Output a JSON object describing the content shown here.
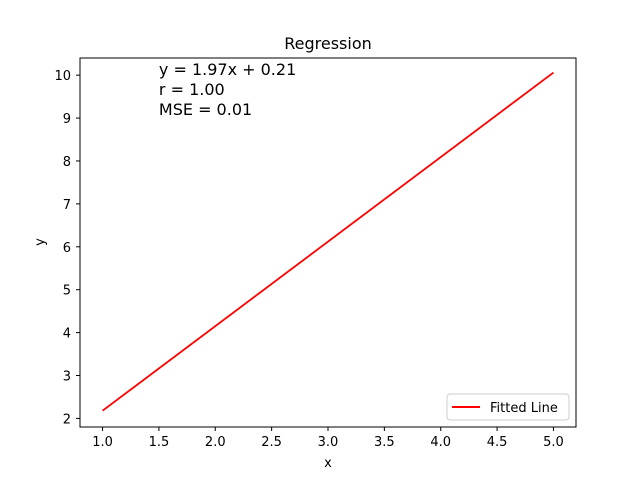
{
  "chart_data": {
    "type": "line",
    "title": "Regression",
    "xlabel": "x",
    "ylabel": "y",
    "xlim": [
      0.8,
      5.2
    ],
    "ylim": [
      1.8,
      10.4
    ],
    "xticks": [
      1.0,
      1.5,
      2.0,
      2.5,
      3.0,
      3.5,
      4.0,
      4.5,
      5.0
    ],
    "xtick_labels": [
      "1.0",
      "1.5",
      "2.0",
      "2.5",
      "3.0",
      "3.5",
      "4.0",
      "4.5",
      "5.0"
    ],
    "yticks": [
      2,
      3,
      4,
      5,
      6,
      7,
      8,
      9,
      10
    ],
    "ytick_labels": [
      "2",
      "3",
      "4",
      "5",
      "6",
      "7",
      "8",
      "9",
      "10"
    ],
    "grid": false,
    "legend_position": "lower-right",
    "series": [
      {
        "name": "Fitted Line",
        "color": "#ff0000",
        "x": [
          1.0,
          5.0
        ],
        "y": [
          2.18,
          10.06
        ]
      }
    ],
    "annotations": [
      "y = 1.97x + 0.21",
      "r = 1.00",
      "MSE = 0.01"
    ]
  }
}
